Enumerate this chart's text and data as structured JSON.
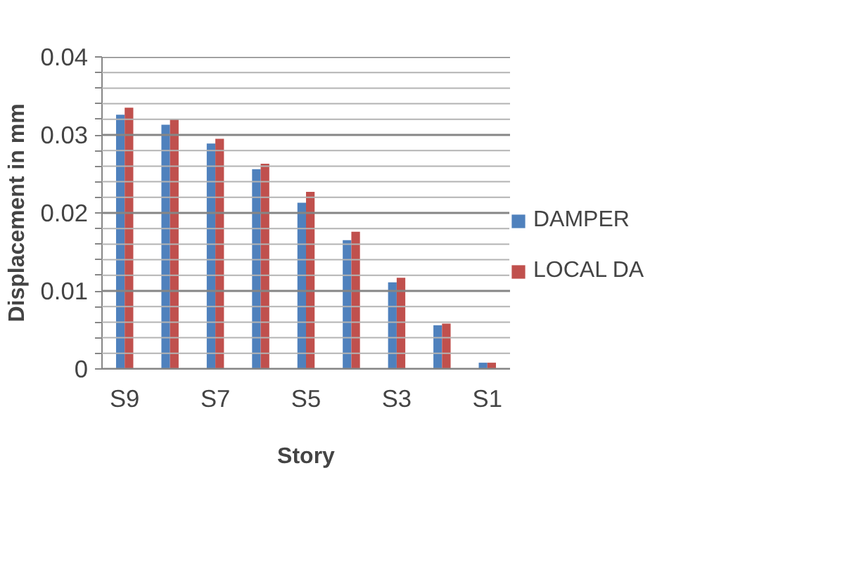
{
  "chart_data": {
    "type": "bar",
    "xlabel": "Story",
    "ylabel": "Displacement in mm",
    "categories": [
      "S9",
      null,
      "S7",
      null,
      "S5",
      null,
      "S3",
      null,
      "S1"
    ],
    "series": [
      {
        "name": "DAMPER",
        "color": "#4f81bd",
        "values": [
          0.0326,
          0.0313,
          0.0289,
          0.0256,
          0.0213,
          0.0165,
          0.0111,
          0.0056,
          0.0008
        ]
      },
      {
        "name": "LOCAL DA",
        "color": "#c0504d",
        "values": [
          0.0335,
          0.032,
          0.0295,
          0.0263,
          0.0227,
          0.0176,
          0.0117,
          0.0058,
          0.0008
        ]
      }
    ],
    "ylim": [
      0,
      0.04
    ],
    "yticks": [
      0,
      {
        "value": 0.002,
        "label": null
      },
      {
        "value": 0.004,
        "label": null
      },
      {
        "value": 0.006,
        "label": null
      },
      {
        "value": 0.008,
        "label": null
      },
      0.01,
      {
        "value": 0.012,
        "label": null
      },
      {
        "value": 0.014,
        "label": null
      },
      {
        "value": 0.016,
        "label": null
      },
      {
        "value": 0.018,
        "label": null
      },
      0.02,
      {
        "value": 0.022,
        "label": null
      },
      {
        "value": 0.024,
        "label": null
      },
      {
        "value": 0.026,
        "label": null
      },
      {
        "value": 0.028,
        "label": null
      },
      0.03,
      {
        "value": 0.032,
        "label": null
      },
      {
        "value": 0.034,
        "label": null
      },
      {
        "value": 0.036,
        "label": null
      },
      {
        "value": 0.038,
        "label": null
      },
      0.04
    ],
    "grid": "y",
    "legend": "right"
  }
}
